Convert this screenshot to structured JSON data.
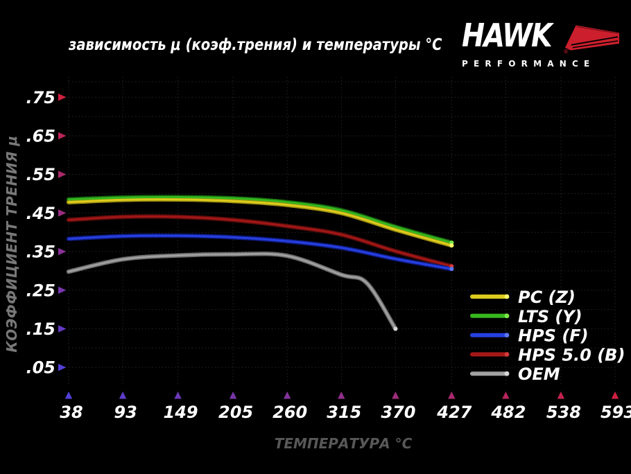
{
  "title": "зависимость μ (коэф.трения) и температуры °C",
  "logo": {
    "brand": "HAWK",
    "sub": "PERFORMANCE",
    "registered": "®"
  },
  "chart_data": {
    "type": "line",
    "title": "зависимость μ (коэф.трения) и температуры °C",
    "xlabel": "ТЕМПЕРАТУРА °C",
    "ylabel": "КОЭФФИЦИЕНТ ТРЕНИЯ μ",
    "x_ticks": [
      38,
      93,
      149,
      205,
      260,
      315,
      370,
      427,
      482,
      538,
      593
    ],
    "y_tick_labels": [
      ".75",
      ".65",
      ".55",
      ".45",
      ".35",
      ".25",
      ".15",
      ".05"
    ],
    "xlim": [
      38,
      593
    ],
    "ylim": [
      0,
      0.81
    ],
    "grid": true,
    "legend_position": "inside-right-bottom",
    "series": [
      {
        "name": "PC (Z)",
        "x": [
          38,
          93,
          149,
          205,
          260,
          315,
          370,
          427
        ],
        "values": [
          0.478,
          0.484,
          0.485,
          0.481,
          0.471,
          0.45,
          0.407,
          0.366
        ],
        "color": "#ddcc1d",
        "edge": "#9d8f10",
        "tip": "#fff76a"
      },
      {
        "name": "LTS (Y)",
        "x": [
          38,
          93,
          149,
          205,
          260,
          315,
          370,
          427
        ],
        "values": [
          0.485,
          0.49,
          0.491,
          0.488,
          0.478,
          0.457,
          0.414,
          0.373
        ],
        "color": "#37b81e",
        "edge": "#176a10",
        "tip": "#7ce84a"
      },
      {
        "name": "HPS (F)",
        "x": [
          38,
          93,
          149,
          205,
          260,
          315,
          370,
          427
        ],
        "values": [
          0.383,
          0.39,
          0.391,
          0.387,
          0.377,
          0.36,
          0.331,
          0.305
        ],
        "color": "#2640e0",
        "edge": "#101c86",
        "tip": "#5a79f0"
      },
      {
        "name": "HPS 5.0 (B)",
        "x": [
          38,
          93,
          149,
          205,
          260,
          315,
          370,
          427
        ],
        "values": [
          0.432,
          0.44,
          0.44,
          0.432,
          0.416,
          0.394,
          0.351,
          0.312
        ],
        "color": "#a31717",
        "edge": "#5e0c0c",
        "tip": "#d23a3a"
      },
      {
        "name": "OEM",
        "x": [
          38,
          93,
          149,
          205,
          260,
          315,
          341,
          370
        ],
        "values": [
          0.298,
          0.33,
          0.34,
          0.343,
          0.339,
          0.29,
          0.268,
          0.15
        ],
        "color": "#a0a0a0",
        "edge": "#6b6b6b",
        "tip": "#d6d6d6"
      }
    ]
  },
  "colors": {
    "background": "#000000",
    "grid": "#2a2a2a",
    "tick_label": "#ffffff",
    "x_axis_title": "#585858",
    "y_axis_title": "#787878",
    "y_axis_top": "#c22034",
    "y_axis_bottom": "#5340d8",
    "x_axis_left": "#4034cc",
    "x_axis_right": "#c22034",
    "arrow_blue": "#5340d8",
    "arrow_red": "#d02040",
    "logo_red": "#cc1f2d"
  }
}
